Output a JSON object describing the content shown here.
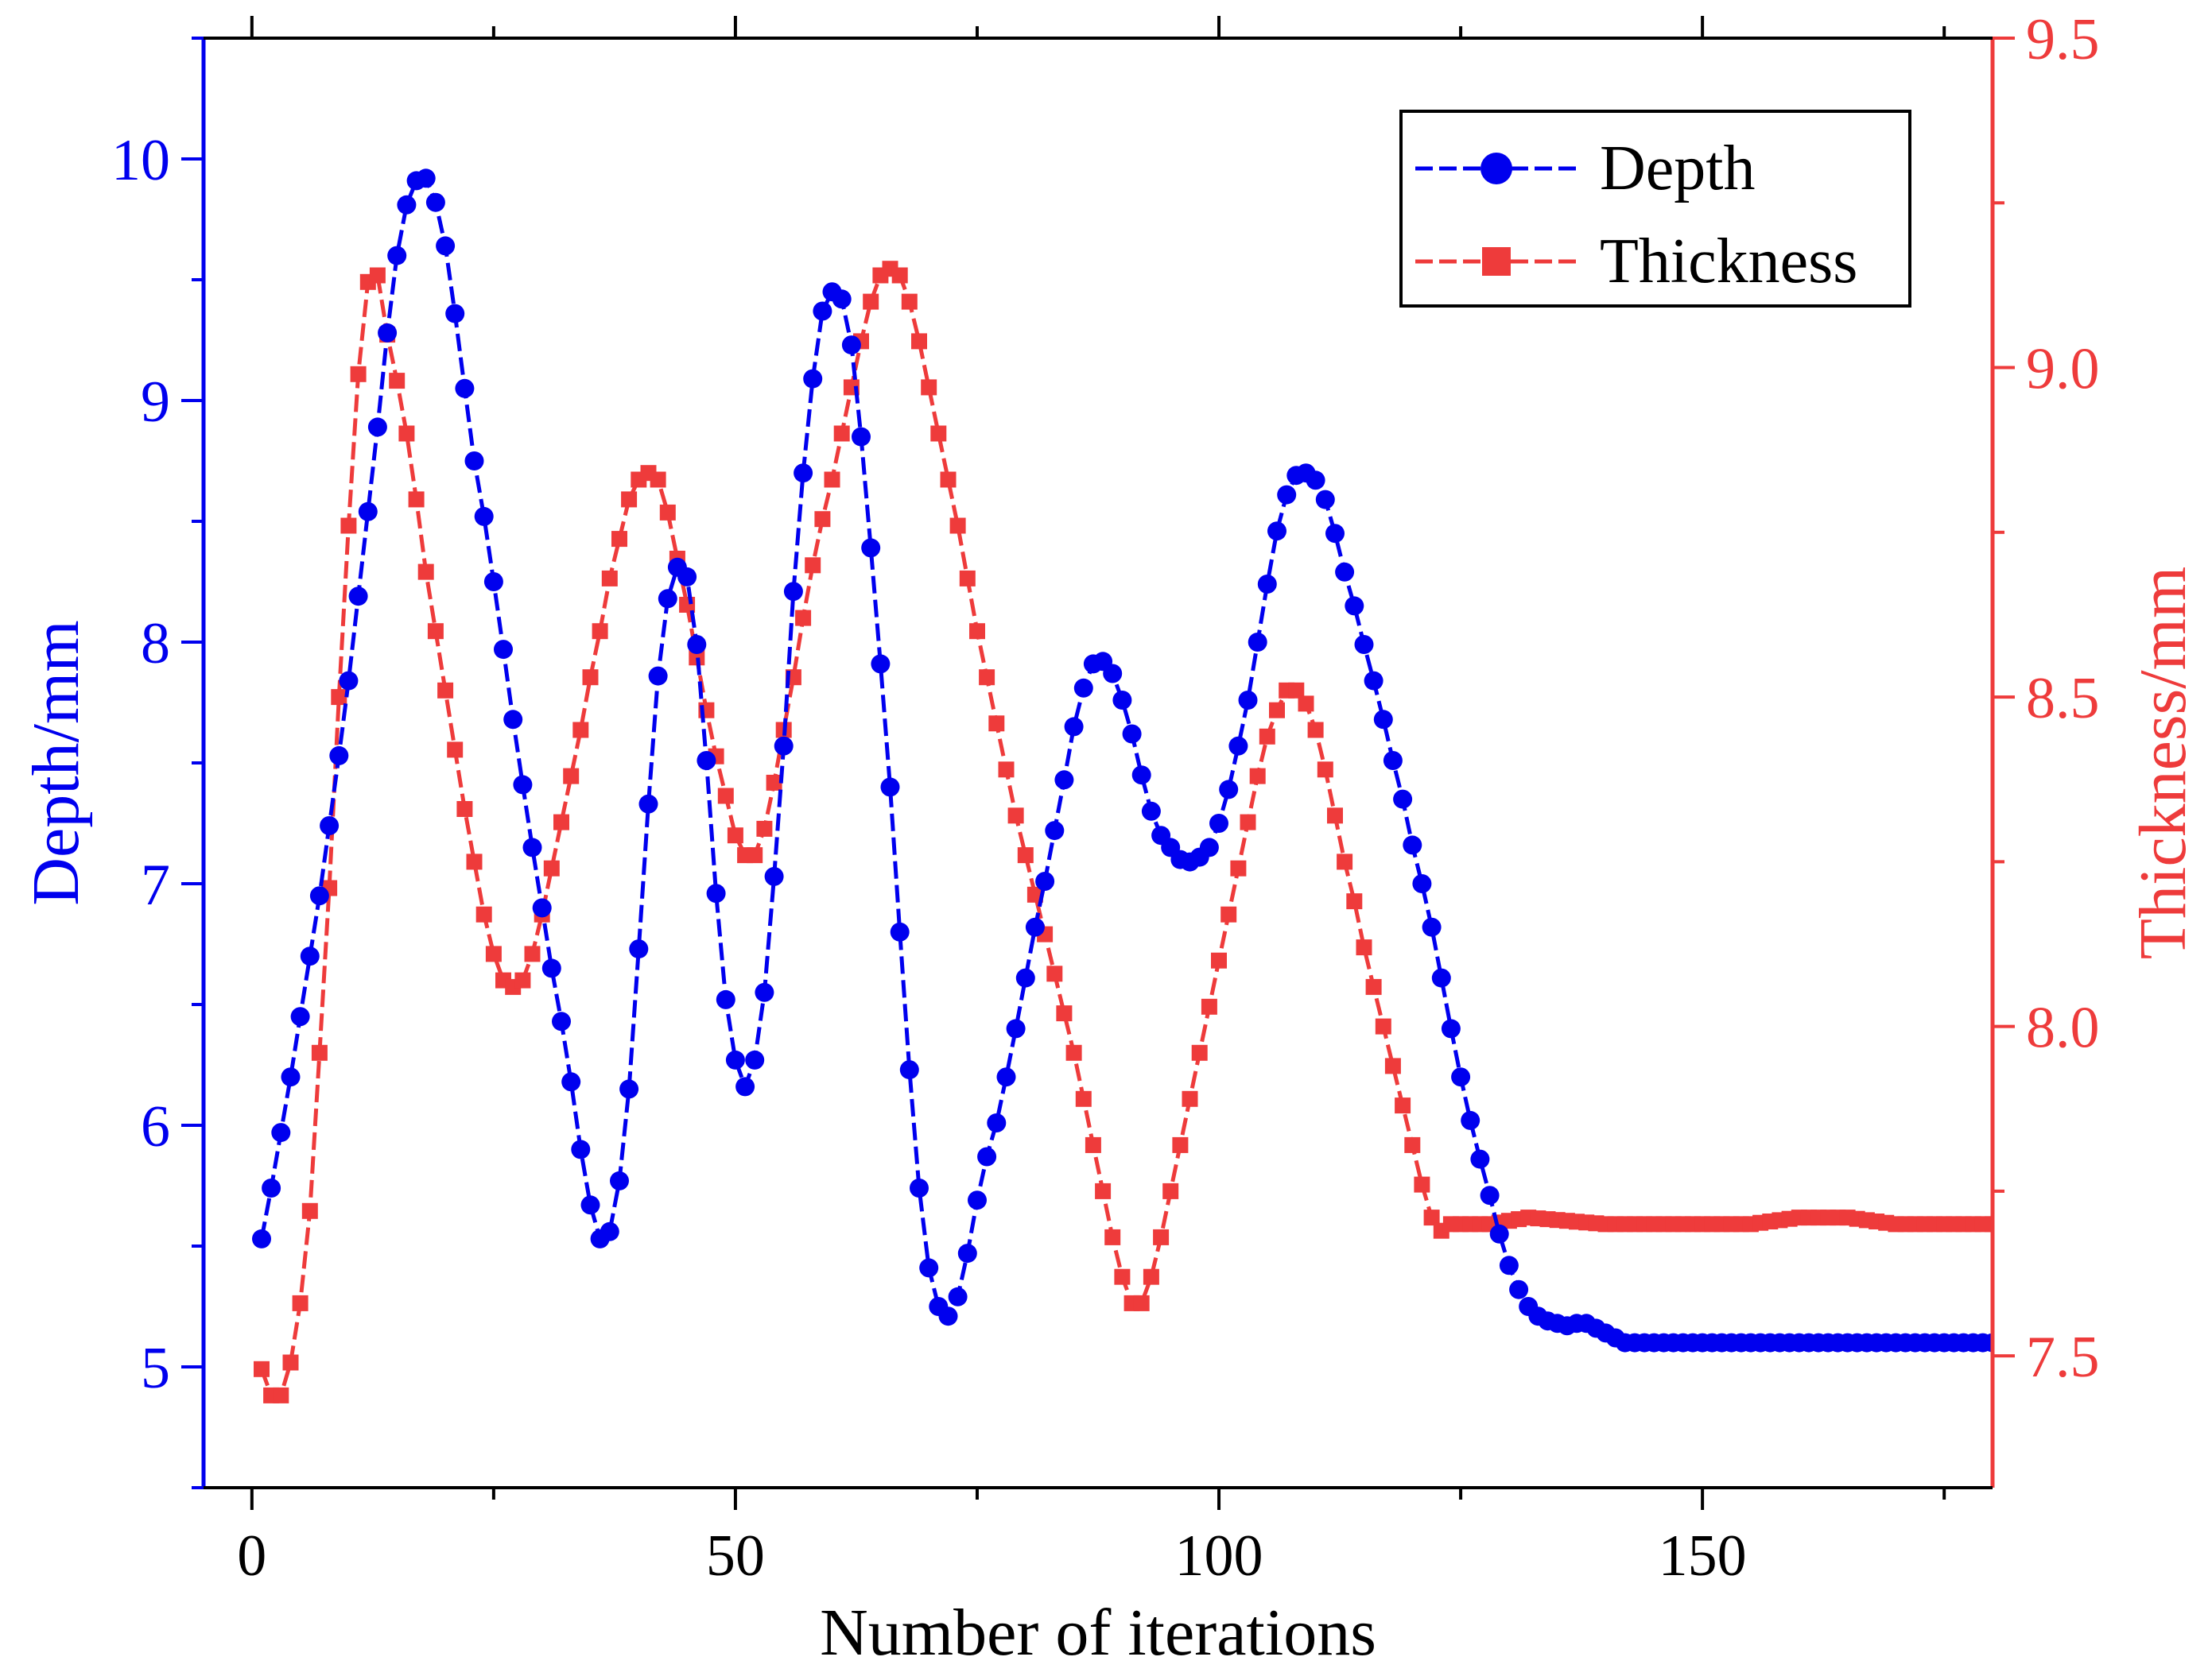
{
  "chart_data": {
    "type": "line",
    "title": "",
    "xlabel": "Number of iterations",
    "ylabel_left": "Depth/mm",
    "ylabel_right": "Thickness/mm",
    "xlim": [
      -5,
      180
    ],
    "ylim_left": [
      4.5,
      10.5
    ],
    "ylim_right": [
      7.3,
      9.5
    ],
    "x_ticks": [
      0,
      50,
      100,
      150
    ],
    "x_tick_labels": [
      "0",
      "50",
      "100",
      "150"
    ],
    "y_left_ticks": [
      5,
      6,
      7,
      8,
      9,
      10
    ],
    "y_left_tick_labels": [
      "5",
      "6",
      "7",
      "8",
      "9",
      "10"
    ],
    "y_right_ticks": [
      7.5,
      8.0,
      8.5,
      9.0,
      9.5
    ],
    "y_right_tick_labels": [
      "7.5",
      "8.0",
      "8.5",
      "9.0",
      "9.5"
    ],
    "grid": false,
    "legend_position": "top-right",
    "colors": {
      "depth": "#0000ee",
      "thickness": "#ee3b3b"
    },
    "depth_anchors": [
      [
        1,
        5.53
      ],
      [
        2,
        5.74
      ],
      [
        3,
        5.97
      ],
      [
        4,
        6.2
      ],
      [
        5,
        6.45
      ],
      [
        6,
        6.7
      ],
      [
        7,
        6.95
      ],
      [
        8,
        7.24
      ],
      [
        9,
        7.53
      ],
      [
        10,
        7.84
      ],
      [
        11,
        8.19
      ],
      [
        12,
        8.54
      ],
      [
        13,
        8.89
      ],
      [
        14,
        9.28
      ],
      [
        15,
        9.6
      ],
      [
        16,
        9.81
      ],
      [
        17,
        9.91
      ],
      [
        18,
        9.92
      ],
      [
        19,
        9.82
      ],
      [
        20,
        9.64
      ],
      [
        21,
        9.36
      ],
      [
        22,
        9.05
      ],
      [
        23,
        8.75
      ],
      [
        24,
        8.52
      ],
      [
        25,
        8.25
      ],
      [
        26,
        7.97
      ],
      [
        27,
        7.68
      ],
      [
        28,
        7.41
      ],
      [
        29,
        7.15
      ],
      [
        30,
        6.9
      ],
      [
        31,
        6.65
      ],
      [
        32,
        6.43
      ],
      [
        33,
        6.18
      ],
      [
        34,
        5.9
      ],
      [
        35,
        5.67
      ],
      [
        36,
        5.53
      ],
      [
        37,
        5.56
      ],
      [
        38,
        5.77
      ],
      [
        39,
        6.15
      ],
      [
        40,
        6.73
      ],
      [
        41,
        7.33
      ],
      [
        42,
        7.86
      ],
      [
        43,
        8.18
      ],
      [
        44,
        8.31
      ],
      [
        45,
        8.27
      ],
      [
        46,
        7.99
      ],
      [
        47,
        7.51
      ],
      [
        48,
        6.96
      ],
      [
        49,
        6.52
      ],
      [
        50,
        6.27
      ],
      [
        51,
        6.16
      ],
      [
        52,
        6.27
      ],
      [
        53,
        6.55
      ],
      [
        54,
        7.03
      ],
      [
        55,
        7.57
      ],
      [
        56,
        8.21
      ],
      [
        57,
        8.7
      ],
      [
        58,
        9.09
      ],
      [
        59,
        9.37
      ],
      [
        60,
        9.45
      ],
      [
        61,
        9.42
      ],
      [
        62,
        9.23
      ],
      [
        63,
        8.85
      ],
      [
        64,
        8.39
      ],
      [
        65,
        7.91
      ],
      [
        66,
        7.4
      ],
      [
        67,
        6.8
      ],
      [
        68,
        6.23
      ],
      [
        69,
        5.74
      ],
      [
        70,
        5.41
      ],
      [
        71,
        5.25
      ],
      [
        72,
        5.21
      ],
      [
        73,
        5.29
      ],
      [
        74,
        5.47
      ],
      [
        75,
        5.69
      ],
      [
        76,
        5.87
      ],
      [
        77,
        6.01
      ],
      [
        78,
        6.2
      ],
      [
        79,
        6.4
      ],
      [
        80,
        6.61
      ],
      [
        81,
        6.82
      ],
      [
        82,
        7.01
      ],
      [
        83,
        7.22
      ],
      [
        84,
        7.43
      ],
      [
        85,
        7.65
      ],
      [
        86,
        7.81
      ],
      [
        87,
        7.91
      ],
      [
        88,
        7.92
      ],
      [
        89,
        7.87
      ],
      [
        90,
        7.76
      ],
      [
        91,
        7.62
      ],
      [
        92,
        7.45
      ],
      [
        93,
        7.3
      ],
      [
        94,
        7.2
      ],
      [
        95,
        7.15
      ],
      [
        96,
        7.1
      ],
      [
        97,
        7.09
      ],
      [
        98,
        7.11
      ],
      [
        99,
        7.15
      ],
      [
        100,
        7.25
      ],
      [
        101,
        7.39
      ],
      [
        102,
        7.57
      ],
      [
        103,
        7.76
      ],
      [
        104,
        8.0
      ],
      [
        105,
        8.24
      ],
      [
        106,
        8.46
      ],
      [
        107,
        8.61
      ],
      [
        108,
        8.69
      ],
      [
        109,
        8.7
      ],
      [
        110,
        8.67
      ],
      [
        111,
        8.59
      ],
      [
        112,
        8.45
      ],
      [
        113,
        8.29
      ],
      [
        114,
        8.15
      ],
      [
        115,
        7.99
      ],
      [
        116,
        7.84
      ],
      [
        117,
        7.68
      ],
      [
        118,
        7.51
      ],
      [
        119,
        7.35
      ],
      [
        120,
        7.16
      ],
      [
        121,
        7.0
      ],
      [
        122,
        6.82
      ],
      [
        123,
        6.61
      ],
      [
        124,
        6.4
      ],
      [
        125,
        6.2
      ],
      [
        126,
        6.02
      ],
      [
        127,
        5.86
      ],
      [
        128,
        5.71
      ],
      [
        129,
        5.55
      ],
      [
        130,
        5.42
      ],
      [
        131,
        5.32
      ],
      [
        132,
        5.25
      ],
      [
        133,
        5.21
      ],
      [
        134,
        5.19
      ],
      [
        135,
        5.18
      ],
      [
        136,
        5.17
      ],
      [
        137,
        5.18
      ],
      [
        138,
        5.18
      ],
      [
        139,
        5.16
      ],
      [
        140,
        5.14
      ],
      [
        141,
        5.12
      ],
      [
        142,
        5.1
      ],
      [
        144,
        5.1
      ],
      [
        150,
        5.1
      ],
      [
        160,
        5.1
      ],
      [
        170,
        5.1
      ],
      [
        180,
        5.1
      ]
    ],
    "thickness_anchors": [
      [
        1,
        7.48
      ],
      [
        2,
        7.44
      ],
      [
        3,
        7.44
      ],
      [
        4,
        7.49
      ],
      [
        5,
        7.58
      ],
      [
        6,
        7.72
      ],
      [
        7,
        7.96
      ],
      [
        8,
        8.21
      ],
      [
        9,
        8.5
      ],
      [
        10,
        8.76
      ],
      [
        11,
        8.99
      ],
      [
        12,
        9.13
      ],
      [
        13,
        9.14
      ],
      [
        14,
        9.05
      ],
      [
        15,
        8.98
      ],
      [
        16,
        8.9
      ],
      [
        17,
        8.8
      ],
      [
        18,
        8.69
      ],
      [
        19,
        8.6
      ],
      [
        20,
        8.51
      ],
      [
        21,
        8.42
      ],
      [
        22,
        8.33
      ],
      [
        23,
        8.25
      ],
      [
        24,
        8.17
      ],
      [
        25,
        8.11
      ],
      [
        26,
        8.07
      ],
      [
        27,
        8.06
      ],
      [
        28,
        8.07
      ],
      [
        29,
        8.11
      ],
      [
        30,
        8.17
      ],
      [
        31,
        8.24
      ],
      [
        32,
        8.31
      ],
      [
        33,
        8.38
      ],
      [
        34,
        8.45
      ],
      [
        35,
        8.53
      ],
      [
        36,
        8.6
      ],
      [
        37,
        8.68
      ],
      [
        38,
        8.74
      ],
      [
        39,
        8.8
      ],
      [
        40,
        8.83
      ],
      [
        41,
        8.84
      ],
      [
        42,
        8.83
      ],
      [
        43,
        8.78
      ],
      [
        44,
        8.71
      ],
      [
        45,
        8.64
      ],
      [
        46,
        8.56
      ],
      [
        47,
        8.48
      ],
      [
        48,
        8.41
      ],
      [
        49,
        8.35
      ],
      [
        50,
        8.29
      ],
      [
        51,
        8.26
      ],
      [
        52,
        8.26
      ],
      [
        53,
        8.3
      ],
      [
        54,
        8.37
      ],
      [
        55,
        8.45
      ],
      [
        56,
        8.53
      ],
      [
        57,
        8.62
      ],
      [
        58,
        8.7
      ],
      [
        59,
        8.77
      ],
      [
        60,
        8.83
      ],
      [
        61,
        8.9
      ],
      [
        62,
        8.97
      ],
      [
        63,
        9.04
      ],
      [
        64,
        9.1
      ],
      [
        65,
        9.14
      ],
      [
        66,
        9.15
      ],
      [
        67,
        9.14
      ],
      [
        68,
        9.1
      ],
      [
        69,
        9.04
      ],
      [
        70,
        8.97
      ],
      [
        71,
        8.9
      ],
      [
        72,
        8.83
      ],
      [
        73,
        8.76
      ],
      [
        74,
        8.68
      ],
      [
        75,
        8.6
      ],
      [
        76,
        8.53
      ],
      [
        77,
        8.46
      ],
      [
        78,
        8.39
      ],
      [
        79,
        8.32
      ],
      [
        80,
        8.26
      ],
      [
        81,
        8.2
      ],
      [
        82,
        8.14
      ],
      [
        83,
        8.08
      ],
      [
        84,
        8.02
      ],
      [
        85,
        7.96
      ],
      [
        86,
        7.89
      ],
      [
        87,
        7.82
      ],
      [
        88,
        7.75
      ],
      [
        89,
        7.68
      ],
      [
        90,
        7.62
      ],
      [
        91,
        7.58
      ],
      [
        92,
        7.58
      ],
      [
        93,
        7.62
      ],
      [
        94,
        7.68
      ],
      [
        95,
        7.75
      ],
      [
        96,
        7.82
      ],
      [
        97,
        7.89
      ],
      [
        98,
        7.96
      ],
      [
        99,
        8.03
      ],
      [
        100,
        8.1
      ],
      [
        101,
        8.17
      ],
      [
        102,
        8.24
      ],
      [
        103,
        8.31
      ],
      [
        104,
        8.38
      ],
      [
        105,
        8.44
      ],
      [
        106,
        8.48
      ],
      [
        107,
        8.51
      ],
      [
        108,
        8.51
      ],
      [
        109,
        8.49
      ],
      [
        110,
        8.45
      ],
      [
        111,
        8.39
      ],
      [
        112,
        8.32
      ],
      [
        113,
        8.25
      ],
      [
        114,
        8.19
      ],
      [
        115,
        8.12
      ],
      [
        116,
        8.06
      ],
      [
        117,
        8.0
      ],
      [
        118,
        7.94
      ],
      [
        119,
        7.88
      ],
      [
        120,
        7.82
      ],
      [
        121,
        7.76
      ],
      [
        122,
        7.71
      ],
      [
        123,
        7.69
      ],
      [
        124,
        7.7
      ],
      [
        126,
        7.7
      ],
      [
        128,
        7.7
      ],
      [
        132,
        7.71
      ],
      [
        140,
        7.7
      ],
      [
        150,
        7.7
      ],
      [
        155,
        7.7
      ],
      [
        160,
        7.71
      ],
      [
        165,
        7.71
      ],
      [
        170,
        7.7
      ],
      [
        175,
        7.7
      ],
      [
        180,
        7.7
      ]
    ],
    "series": [
      {
        "name": "Depth",
        "axis": "left",
        "marker": "circle",
        "color": "#0000ee"
      },
      {
        "name": "Thickness",
        "axis": "right",
        "marker": "square",
        "color": "#ee3b3b"
      }
    ]
  }
}
